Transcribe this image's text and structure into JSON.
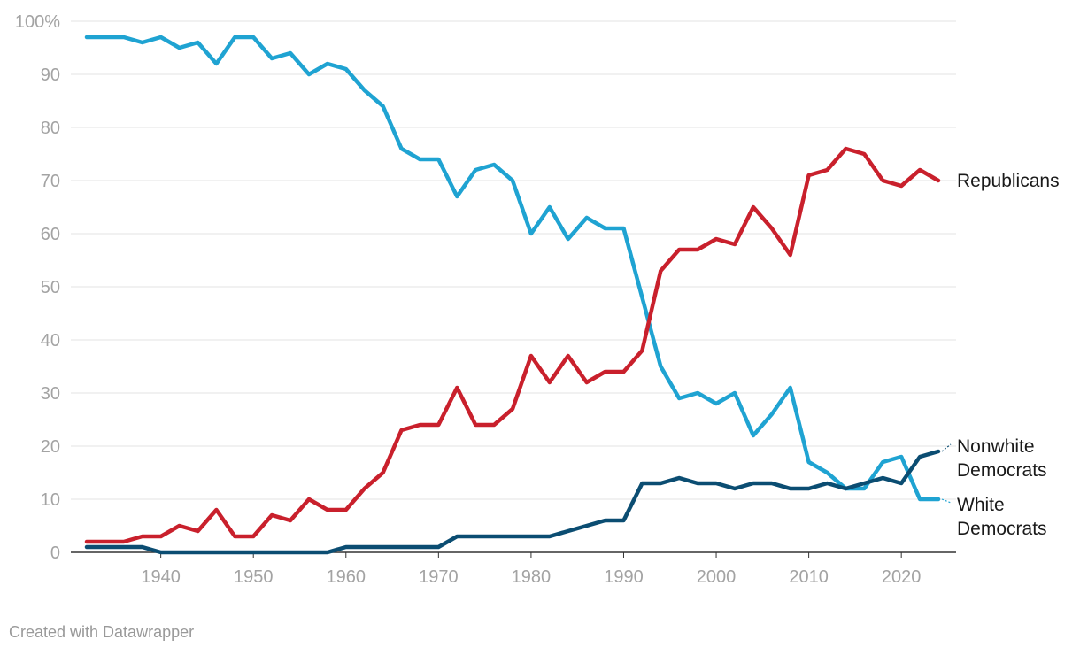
{
  "chart_data": {
    "type": "line",
    "title": "",
    "xlabel": "",
    "ylabel": "",
    "xlim": [
      1932,
      2024
    ],
    "ylim": [
      0,
      100
    ],
    "x_ticks": [
      1940,
      1950,
      1960,
      1970,
      1980,
      1990,
      2000,
      2010,
      2020
    ],
    "y_ticks": [
      {
        "value": 0,
        "label": "0"
      },
      {
        "value": 10,
        "label": "10"
      },
      {
        "value": 20,
        "label": "20"
      },
      {
        "value": 30,
        "label": "30"
      },
      {
        "value": 40,
        "label": "40"
      },
      {
        "value": 50,
        "label": "50"
      },
      {
        "value": 60,
        "label": "60"
      },
      {
        "value": 70,
        "label": "70"
      },
      {
        "value": 80,
        "label": "80"
      },
      {
        "value": 90,
        "label": "90"
      },
      {
        "value": 100,
        "label": "100%"
      }
    ],
    "grid": "horizontal",
    "x": [
      1932,
      1934,
      1936,
      1938,
      1940,
      1942,
      1944,
      1946,
      1948,
      1950,
      1952,
      1954,
      1956,
      1958,
      1960,
      1962,
      1964,
      1966,
      1968,
      1970,
      1972,
      1974,
      1976,
      1978,
      1980,
      1982,
      1984,
      1986,
      1988,
      1990,
      1992,
      1994,
      1996,
      1998,
      2000,
      2002,
      2004,
      2006,
      2008,
      2010,
      2012,
      2014,
      2016,
      2018,
      2020,
      2022,
      2024
    ],
    "series": [
      {
        "name": "White Democrats",
        "label_lines": [
          "White",
          "Democrats"
        ],
        "color": "#1fa3d2",
        "values": [
          97,
          97,
          97,
          96,
          97,
          95,
          96,
          92,
          97,
          97,
          93,
          94,
          90,
          92,
          91,
          87,
          84,
          76,
          74,
          74,
          67,
          72,
          73,
          70,
          60,
          65,
          59,
          63,
          61,
          61,
          48,
          35,
          29,
          30,
          28,
          30,
          22,
          26,
          31,
          17,
          15,
          12,
          12,
          17,
          18,
          10,
          10
        ]
      },
      {
        "name": "Republicans",
        "label_lines": [
          "Republicans"
        ],
        "color": "#c9202c",
        "values": [
          2,
          2,
          2,
          3,
          3,
          5,
          4,
          8,
          3,
          3,
          7,
          6,
          10,
          8,
          8,
          12,
          15,
          23,
          24,
          24,
          31,
          24,
          24,
          27,
          37,
          32,
          37,
          32,
          34,
          34,
          38,
          53,
          57,
          57,
          59,
          58,
          65,
          61,
          56,
          71,
          72,
          76,
          75,
          70,
          69,
          72,
          70
        ]
      },
      {
        "name": "Nonwhite Democrats",
        "label_lines": [
          "Nonwhite",
          "Democrats"
        ],
        "color": "#0b4d72",
        "values": [
          1,
          1,
          1,
          1,
          0,
          0,
          0,
          0,
          0,
          0,
          0,
          0,
          0,
          0,
          1,
          1,
          1,
          1,
          1,
          1,
          3,
          3,
          3,
          3,
          3,
          3,
          4,
          5,
          6,
          6,
          13,
          13,
          14,
          13,
          13,
          12,
          13,
          13,
          12,
          12,
          13,
          12,
          13,
          14,
          13,
          18,
          19
        ]
      }
    ]
  },
  "footer": {
    "credit": "Created with Datawrapper"
  }
}
